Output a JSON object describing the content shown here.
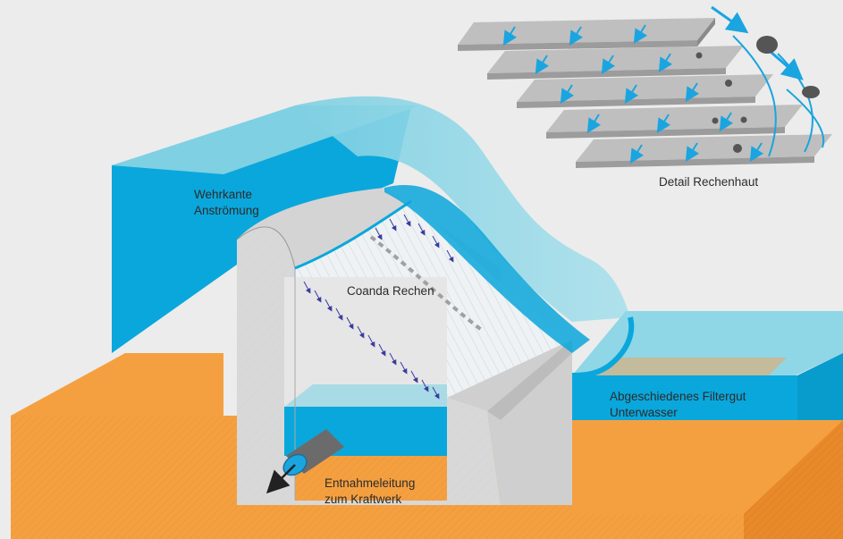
{
  "labels": {
    "wehrkante_1": "Wehrkante",
    "wehrkante_2": "Anströmung",
    "coanda": "Coanda Rechen",
    "filtergut_1": "Abgeschiedenes Filtergut",
    "filtergut_2": "Unterwasser",
    "entnahme_1": "Entnahmeleitung",
    "entnahme_2": "zum Kraftwerk",
    "detail": "Detail Rechenhaut"
  },
  "colors": {
    "background": "#ececec",
    "ground": "#f5a040",
    "ground_side": "#e8892a",
    "water_deep": "#0aa7dc",
    "water_light": "#8fd6e6",
    "concrete": "#d4d4d4",
    "concrete_dark": "#bdbdbd",
    "arrow": "#1aa5e0",
    "screen_arrow": "#3a3ca0"
  }
}
